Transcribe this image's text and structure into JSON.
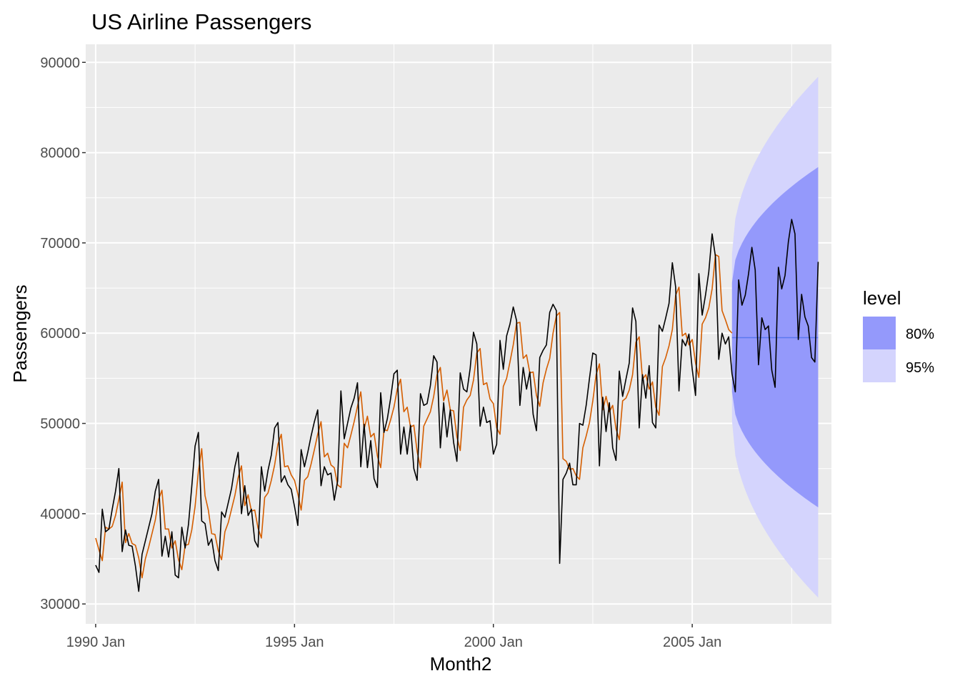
{
  "chart_data": {
    "type": "line",
    "title": "US Airline Passengers",
    "xlabel": "Month2",
    "ylabel": "Passengers",
    "x_ticks": [
      "1990 Jan",
      "1995 Jan",
      "2000 Jan",
      "2005 Jan"
    ],
    "y_ticks": [
      "30000",
      "40000",
      "50000",
      "60000",
      "70000",
      "80000",
      "90000"
    ],
    "xlim": [
      "1989-10",
      "2008-07"
    ],
    "ylim": [
      27800,
      92000
    ],
    "grid": true,
    "legend": {
      "title": "level",
      "position": "right",
      "entries": [
        {
          "label": "80%",
          "color": "#9499fb"
        },
        {
          "label": "95%",
          "color": "#d4d4fd"
        }
      ]
    },
    "colors": {
      "panel": "#ebebeb",
      "grid": "#ffffff",
      "actual": "#000000",
      "fitted": "#d55e00",
      "forecast_mean": "#5a78f0",
      "band80": "#9499fb",
      "band95": "#d4d4fd"
    },
    "series": [
      {
        "kind": "actual",
        "start": "1990-01",
        "values": [
          34300,
          33500,
          40500,
          38000,
          38300,
          40500,
          42500,
          45000,
          35800,
          38200,
          36500,
          36400,
          34200,
          31400,
          35500,
          37000,
          38500,
          40000,
          42500,
          43800,
          35300,
          37500,
          35200,
          38000,
          33200,
          32900,
          38500,
          36200,
          38800,
          43000,
          47500,
          49000,
          39200,
          38900,
          36500,
          37200,
          34800,
          33700,
          40200,
          39600,
          41200,
          42800,
          45200,
          46800,
          40000,
          43100,
          39800,
          40500,
          37000,
          36300,
          45200,
          42500,
          44800,
          46500,
          49500,
          50100,
          43500,
          44200,
          43200,
          42700,
          40800,
          38700,
          47100,
          45200,
          46800,
          48600,
          50200,
          51500,
          43100,
          45200,
          44300,
          44500,
          41500,
          43600,
          53600,
          48300,
          50000,
          51700,
          52800,
          54500,
          45200,
          49900,
          45100,
          48100,
          43900,
          42900,
          53400,
          49000,
          50500,
          52800,
          55500,
          55900,
          46600,
          49600,
          46600,
          49800,
          45000,
          43700,
          53300,
          52000,
          52200,
          54200,
          57500,
          56800,
          47300,
          52300,
          48500,
          51500,
          47900,
          45800,
          55600,
          53800,
          53500,
          56100,
          60100,
          58800,
          49700,
          51800,
          50100,
          50300,
          46600,
          47700,
          59200,
          56000,
          59700,
          61000,
          62900,
          61400,
          52000,
          56200,
          53800,
          55700,
          51000,
          49200,
          57300,
          58100,
          58700,
          62300,
          63200,
          62500,
          34500,
          43800,
          44500,
          45600,
          43200,
          43200,
          50000,
          49800,
          52000,
          55000,
          57800,
          57600,
          45300,
          52900,
          49100,
          52300,
          47300,
          45900,
          55800,
          53000,
          54900,
          56700,
          62800,
          61300,
          49500,
          55400,
          52800,
          56400,
          50100,
          49500,
          60900,
          60200,
          61700,
          63300,
          67800,
          65100,
          53600,
          59300,
          58600,
          59900,
          56000,
          53100,
          66600,
          62000,
          64200,
          66800,
          71000,
          68500,
          57100,
          60000,
          58800,
          59600,
          55500,
          53500,
          65900,
          63100,
          64200,
          66600,
          69500,
          67000,
          56500,
          61700,
          60400,
          60800,
          55900,
          54000,
          67300,
          64900,
          66400,
          70100,
          72600,
          71000,
          59300,
          64300,
          61800,
          60800,
          57300,
          56800,
          67900
        ]
      },
      {
        "kind": "fitted",
        "start": "1990-01",
        "values": [
          37300,
          36000,
          34800,
          38500,
          38300,
          38600,
          39800,
          41600,
          43500,
          36800,
          37800,
          36700,
          36500,
          35100,
          32900,
          35000,
          36300,
          37800,
          39300,
          41600,
          42600,
          38300,
          38300,
          36200,
          37000,
          34900,
          33800,
          36500,
          36600,
          38200,
          40800,
          44700,
          47200,
          42000,
          40400,
          37800,
          37700,
          35900,
          34900,
          38000,
          39000,
          40500,
          42000,
          44000,
          45300,
          40900,
          42100,
          40300,
          40400,
          38400,
          37300,
          41800,
          42300,
          43700,
          45400,
          47700,
          48800,
          45200,
          45300,
          44300,
          43700,
          42200,
          40400,
          43700,
          44100,
          45500,
          47100,
          48800,
          50200,
          46300,
          46700,
          45400,
          45100,
          43200,
          42900,
          47800,
          47300,
          48700,
          50200,
          51900,
          53500,
          49400,
          50800,
          48500,
          48900,
          46400,
          45100,
          49300,
          49200,
          50400,
          51800,
          53800,
          54900,
          51300,
          51800,
          49600,
          49800,
          46900,
          45100,
          49700,
          50500,
          51300,
          53000,
          55400,
          56200,
          52500,
          53700,
          51500,
          51400,
          48500,
          47000,
          51800,
          52600,
          53100,
          54800,
          57800,
          58300,
          54300,
          54500,
          52700,
          52200,
          49500,
          48800,
          54100,
          55000,
          56800,
          58700,
          61100,
          61200,
          57200,
          57600,
          55600,
          55700,
          53100,
          51900,
          54500,
          56000,
          57200,
          60000,
          61900,
          62300,
          46100,
          45800,
          44900,
          45000,
          44200,
          43800,
          47300,
          48600,
          50100,
          52500,
          55400,
          56600,
          51500,
          53000,
          51300,
          52000,
          49400,
          48200,
          52500,
          52800,
          53700,
          55400,
          59000,
          59600,
          54900,
          55400,
          53800,
          54600,
          51800,
          50900,
          56300,
          57300,
          58600,
          60400,
          64200,
          65100,
          59700,
          60000,
          58700,
          59300,
          56700,
          55100,
          61000,
          61700,
          62800,
          64900,
          68700,
          68500,
          62500,
          61500,
          60400,
          60000
        ]
      }
    ],
    "forecast": {
      "start": "2006-01",
      "mean": 59500,
      "lo80_end": 40700,
      "hi80_end": 78400,
      "lo95_end": 30700,
      "hi95_end": 88400,
      "lo80_start": 53500,
      "hi80_start": 65600,
      "lo95_start": 50300,
      "hi95_start": 68800
    }
  }
}
